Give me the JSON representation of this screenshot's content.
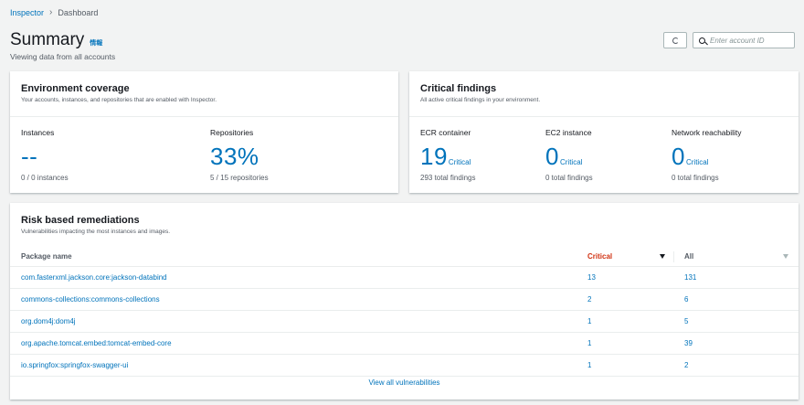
{
  "breadcrumb": {
    "root": "Inspector",
    "current": "Dashboard"
  },
  "header": {
    "title": "Summary",
    "info_label": "情報",
    "subtitle": "Viewing data from all accounts",
    "search_placeholder": "Enter account ID"
  },
  "coverage": {
    "title": "Environment coverage",
    "description": "Your accounts, instances, and repositories that are enabled with Inspector.",
    "instances": {
      "label": "Instances",
      "value": "--",
      "sub": "0 / 0 instances"
    },
    "repositories": {
      "label": "Repositories",
      "value": "33%",
      "sub": "5 / 15 repositories"
    }
  },
  "critical": {
    "title": "Critical findings",
    "description": "All active critical findings in your environment.",
    "unit_label": "Critical",
    "items": [
      {
        "label": "ECR container",
        "value": "19",
        "sub": "293 total findings"
      },
      {
        "label": "EC2 instance",
        "value": "0",
        "sub": "0 total findings"
      },
      {
        "label": "Network reachability",
        "value": "0",
        "sub": "0 total findings"
      }
    ]
  },
  "risk": {
    "title": "Risk based remediations",
    "description": "Vulnerabilities impacting the most instances and images.",
    "columns": {
      "package": "Package name",
      "critical": "Critical",
      "all": "All"
    },
    "rows": [
      {
        "package": "com.fasterxml.jackson.core:jackson-databind",
        "critical": "13",
        "all": "131"
      },
      {
        "package": "commons-collections:commons-collections",
        "critical": "2",
        "all": "6"
      },
      {
        "package": "org.dom4j:dom4j",
        "critical": "1",
        "all": "5"
      },
      {
        "package": "org.apache.tomcat.embed:tomcat-embed-core",
        "critical": "1",
        "all": "39"
      },
      {
        "package": "io.springfox:springfox-swagger-ui",
        "critical": "1",
        "all": "2"
      }
    ],
    "view_all": "View all vulnerabilities"
  },
  "colors": {
    "link": "#0073bb",
    "critical_header": "#d13212",
    "background": "#f2f3f3"
  }
}
